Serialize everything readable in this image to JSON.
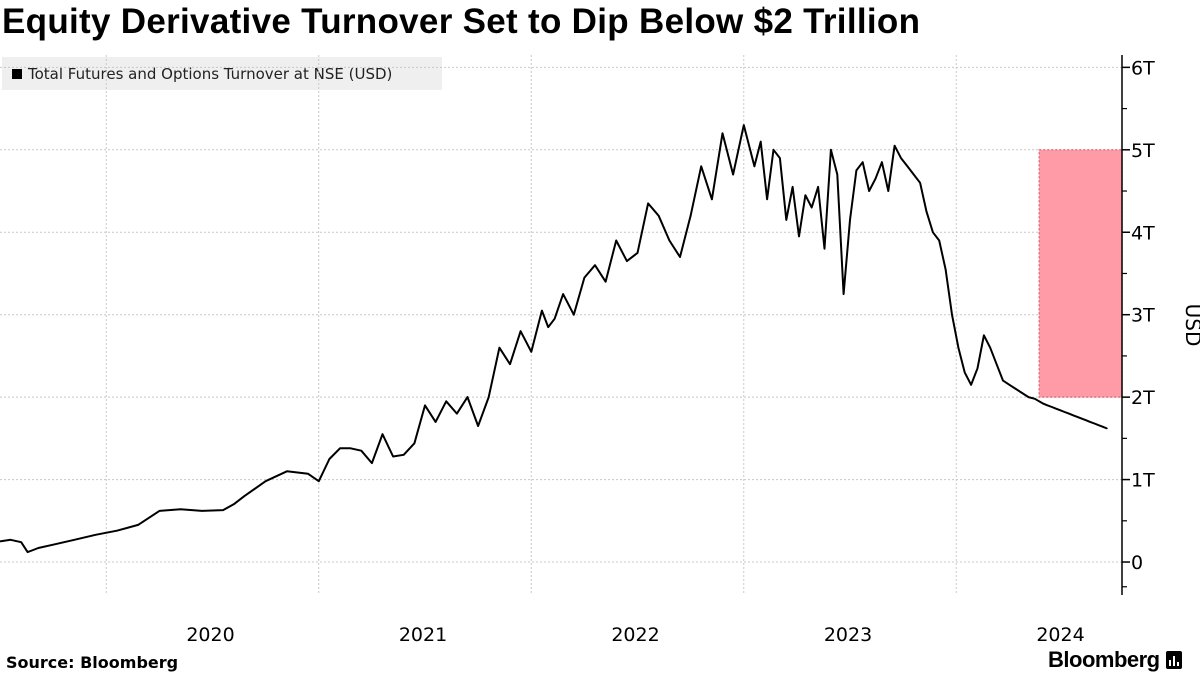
{
  "title": "Equity Derivative Turnover Set to Dip Below $2 Trillion",
  "source": "Source: Bloomberg",
  "brand": "Bloomberg",
  "colors": {
    "line": "#000000",
    "highlight": "#ff9aa7",
    "highlight_border": "#e0606f",
    "grid": "#c8c8c8"
  },
  "chart_data": {
    "type": "line",
    "title": "Equity Derivative Turnover Set to Dip Below $2 Trillion",
    "ylabel": "USD",
    "xlabel": "",
    "ylim": [
      -0.4,
      6.15
    ],
    "xlim": [
      2019.45,
      2024.73
    ],
    "y_ticks": [
      0,
      1,
      2,
      3,
      4,
      5,
      6
    ],
    "y_tick_labels": [
      "0",
      "1T",
      "2T",
      "3T",
      "4T",
      "5T",
      "6T"
    ],
    "x_tick_labels": [
      "2020",
      "2021",
      "2022",
      "2023",
      "2024"
    ],
    "x_year_boundaries": [
      2019.95,
      2020.95,
      2021.95,
      2022.95,
      2023.95
    ],
    "grid": true,
    "legend": {
      "position": "top-left",
      "entries": [
        "Total Futures and Options Turnover at NSE (USD)"
      ]
    },
    "highlight": {
      "x_start": 2024.34,
      "x_end": 2024.73,
      "y_start": 2,
      "y_end": 5
    },
    "series": [
      {
        "name": "Total Futures and Options Turnover at NSE (USD)",
        "x": [
          2019.45,
          2019.5,
          2019.55,
          2019.58,
          2019.6,
          2019.63,
          2019.7,
          2019.8,
          2019.9,
          2020.0,
          2020.1,
          2020.2,
          2020.3,
          2020.4,
          2020.5,
          2020.55,
          2020.6,
          2020.7,
          2020.8,
          2020.9,
          2020.95,
          2021.0,
          2021.05,
          2021.1,
          2021.15,
          2021.2,
          2021.25,
          2021.3,
          2021.35,
          2021.4,
          2021.45,
          2021.5,
          2021.55,
          2021.6,
          2021.65,
          2021.7,
          2021.75,
          2021.8,
          2021.85,
          2021.9,
          2021.95,
          2022.0,
          2022.03,
          2022.06,
          2022.1,
          2022.15,
          2022.2,
          2022.25,
          2022.3,
          2022.35,
          2022.4,
          2022.45,
          2022.5,
          2022.55,
          2022.6,
          2022.65,
          2022.7,
          2022.75,
          2022.8,
          2022.85,
          2022.9,
          2022.95,
          2023.0,
          2023.03,
          2023.06,
          2023.09,
          2023.12,
          2023.15,
          2023.18,
          2023.21,
          2023.24,
          2023.27,
          2023.3,
          2023.33,
          2023.36,
          2023.39,
          2023.42,
          2023.45,
          2023.48,
          2023.51,
          2023.54,
          2023.57,
          2023.6,
          2023.63,
          2023.66,
          2023.69,
          2023.72,
          2023.75,
          2023.78,
          2023.81,
          2023.84,
          2023.87,
          2023.9,
          2023.93,
          2023.96,
          2023.99,
          2024.02,
          2024.05,
          2024.08,
          2024.11,
          2024.14,
          2024.17,
          2024.2,
          2024.23,
          2024.26,
          2024.29,
          2024.32,
          2024.34,
          2024.36,
          2024.38,
          2024.4,
          2024.42,
          2024.44,
          2024.46,
          2024.48,
          2024.5,
          2024.52,
          2024.54,
          2024.56,
          2024.58,
          2024.6,
          2024.62,
          2024.64,
          2024.66
        ],
        "values": [
          0.25,
          0.27,
          0.24,
          0.12,
          0.14,
          0.17,
          0.21,
          0.27,
          0.33,
          0.38,
          0.45,
          0.62,
          0.64,
          0.62,
          0.63,
          0.7,
          0.8,
          0.98,
          1.1,
          1.07,
          0.98,
          1.25,
          1.38,
          1.38,
          1.35,
          1.2,
          1.55,
          1.28,
          1.3,
          1.44,
          1.9,
          1.7,
          1.95,
          1.8,
          2.0,
          1.65,
          2.0,
          2.6,
          2.4,
          2.8,
          2.55,
          3.05,
          2.85,
          2.95,
          3.25,
          3.0,
          3.45,
          3.6,
          3.4,
          3.9,
          3.65,
          3.75,
          4.35,
          4.2,
          3.9,
          3.7,
          4.2,
          4.8,
          4.4,
          5.2,
          4.7,
          5.3,
          4.8,
          5.1,
          4.4,
          5.0,
          4.9,
          4.15,
          4.55,
          3.95,
          4.45,
          4.3,
          4.55,
          3.8,
          5.0,
          4.7,
          3.25,
          4.15,
          4.75,
          4.85,
          4.5,
          4.65,
          4.85,
          4.5,
          5.05,
          4.9,
          4.8,
          4.7,
          4.6,
          4.25,
          4.0,
          3.9,
          3.55,
          3.0,
          2.6,
          2.3,
          2.15,
          2.35,
          2.75,
          2.6,
          2.4,
          2.2,
          2.15,
          2.1,
          2.05,
          2.0,
          1.98,
          1.95,
          1.92,
          1.9,
          1.88,
          1.86,
          1.84,
          1.82,
          1.8,
          1.78,
          1.76,
          1.74,
          1.72,
          1.7,
          1.68,
          1.66,
          1.64,
          1.62
        ]
      }
    ]
  }
}
